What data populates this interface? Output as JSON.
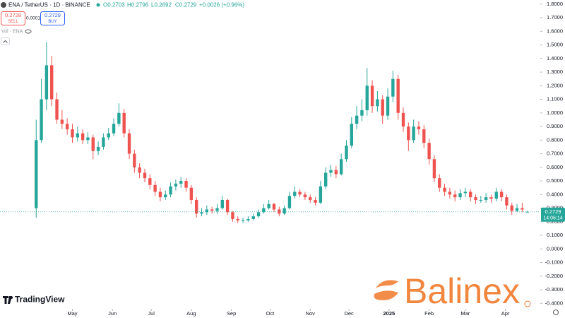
{
  "header": {
    "symbol": "ENA / TetherUS · 1D · BINANCE",
    "open": "O0.2703",
    "high": "H0.2796",
    "low": "L0.2692",
    "close": "C0.2729",
    "change": "+0.0026 (+0.96%)"
  },
  "trade": {
    "sell_price": "0.2728",
    "sell": "SELL",
    "spread": "0.0001",
    "buy_price": "0.2729",
    "buy": "BUY"
  },
  "volume_label": "Vol · ENA",
  "price_tag": {
    "price": "0.2729",
    "countdown": "14:06:14"
  },
  "branding": {
    "platform": "TradingView",
    "watermark": "Balinex"
  },
  "chart_data": {
    "type": "candlestick",
    "up_color": "#26a69a",
    "down_color": "#ef5350",
    "grid": false,
    "x": [
      0,
      4,
      8,
      12,
      16,
      20,
      24,
      28,
      32,
      36,
      40,
      44,
      48,
      52,
      56,
      60,
      64,
      68,
      72,
      76,
      80,
      84,
      88,
      92,
      96,
      100,
      104,
      108,
      112,
      116,
      120,
      124,
      128,
      132,
      136,
      140,
      144,
      148,
      152,
      156,
      160,
      164,
      168,
      172,
      176,
      180,
      184,
      188,
      192,
      196,
      200,
      204,
      208,
      212,
      216,
      220,
      224,
      228,
      232,
      236,
      240,
      244,
      248,
      252,
      256,
      260,
      264,
      268,
      272,
      276,
      280,
      284,
      288,
      292,
      296,
      300,
      304,
      308,
      312,
      316,
      320,
      324,
      328,
      332,
      336,
      340,
      344,
      348,
      352,
      356,
      360,
      364,
      368,
      372,
      376,
      380
    ],
    "ohlc": [
      [
        0.3,
        0.95,
        0.23,
        0.8
      ],
      [
        0.8,
        1.25,
        0.78,
        1.1
      ],
      [
        1.1,
        1.52,
        1.02,
        1.35
      ],
      [
        1.35,
        1.42,
        1.05,
        1.1
      ],
      [
        1.1,
        1.15,
        0.92,
        0.95
      ],
      [
        0.95,
        1.02,
        0.88,
        0.92
      ],
      [
        0.92,
        0.96,
        0.84,
        0.88
      ],
      [
        0.88,
        0.92,
        0.78,
        0.82
      ],
      [
        0.82,
        0.9,
        0.79,
        0.85
      ],
      [
        0.85,
        0.88,
        0.77,
        0.8
      ],
      [
        0.8,
        0.86,
        0.77,
        0.82
      ],
      [
        0.82,
        0.84,
        0.66,
        0.72
      ],
      [
        0.72,
        0.79,
        0.69,
        0.75
      ],
      [
        0.75,
        0.85,
        0.73,
        0.82
      ],
      [
        0.82,
        0.89,
        0.8,
        0.85
      ],
      [
        0.85,
        0.96,
        0.83,
        0.92
      ],
      [
        0.92,
        1.07,
        0.9,
        1.0
      ],
      [
        1.0,
        1.03,
        0.82,
        0.85
      ],
      [
        0.85,
        0.88,
        0.66,
        0.7
      ],
      [
        0.7,
        0.73,
        0.56,
        0.6
      ],
      [
        0.6,
        0.63,
        0.52,
        0.56
      ],
      [
        0.56,
        0.59,
        0.49,
        0.52
      ],
      [
        0.52,
        0.55,
        0.44,
        0.47
      ],
      [
        0.47,
        0.5,
        0.39,
        0.42
      ],
      [
        0.42,
        0.45,
        0.35,
        0.38
      ],
      [
        0.38,
        0.43,
        0.36,
        0.4
      ],
      [
        0.4,
        0.49,
        0.38,
        0.46
      ],
      [
        0.46,
        0.51,
        0.43,
        0.48
      ],
      [
        0.48,
        0.53,
        0.45,
        0.5
      ],
      [
        0.5,
        0.52,
        0.42,
        0.45
      ],
      [
        0.45,
        0.47,
        0.33,
        0.36
      ],
      [
        0.36,
        0.38,
        0.23,
        0.26
      ],
      [
        0.26,
        0.3,
        0.24,
        0.27
      ],
      [
        0.27,
        0.32,
        0.25,
        0.29
      ],
      [
        0.29,
        0.31,
        0.26,
        0.28
      ],
      [
        0.28,
        0.33,
        0.26,
        0.3
      ],
      [
        0.3,
        0.39,
        0.29,
        0.36
      ],
      [
        0.36,
        0.37,
        0.25,
        0.27
      ],
      [
        0.27,
        0.28,
        0.2,
        0.22
      ],
      [
        0.22,
        0.24,
        0.19,
        0.21
      ],
      [
        0.21,
        0.23,
        0.19,
        0.21
      ],
      [
        0.21,
        0.24,
        0.2,
        0.22
      ],
      [
        0.22,
        0.26,
        0.21,
        0.24
      ],
      [
        0.24,
        0.29,
        0.23,
        0.27
      ],
      [
        0.27,
        0.33,
        0.26,
        0.3
      ],
      [
        0.3,
        0.36,
        0.29,
        0.33
      ],
      [
        0.33,
        0.34,
        0.27,
        0.29
      ],
      [
        0.29,
        0.31,
        0.24,
        0.26
      ],
      [
        0.26,
        0.32,
        0.25,
        0.3
      ],
      [
        0.3,
        0.42,
        0.29,
        0.39
      ],
      [
        0.39,
        0.46,
        0.37,
        0.42
      ],
      [
        0.42,
        0.44,
        0.38,
        0.4
      ],
      [
        0.4,
        0.42,
        0.36,
        0.38
      ],
      [
        0.38,
        0.4,
        0.34,
        0.36
      ],
      [
        0.36,
        0.38,
        0.32,
        0.34
      ],
      [
        0.34,
        0.5,
        0.33,
        0.46
      ],
      [
        0.46,
        0.6,
        0.44,
        0.56
      ],
      [
        0.56,
        0.62,
        0.53,
        0.58
      ],
      [
        0.58,
        0.61,
        0.52,
        0.55
      ],
      [
        0.55,
        0.7,
        0.54,
        0.66
      ],
      [
        0.66,
        0.8,
        0.64,
        0.76
      ],
      [
        0.76,
        0.97,
        0.74,
        0.92
      ],
      [
        0.92,
        1.05,
        0.88,
        0.98
      ],
      [
        0.98,
        1.1,
        0.94,
        1.02
      ],
      [
        1.02,
        1.33,
        0.98,
        1.2
      ],
      [
        1.2,
        1.24,
        1.0,
        1.05
      ],
      [
        1.05,
        1.16,
        1.01,
        1.1
      ],
      [
        1.1,
        1.13,
        0.92,
        0.98
      ],
      [
        0.98,
        1.18,
        0.95,
        1.12
      ],
      [
        1.12,
        1.31,
        1.08,
        1.25
      ],
      [
        1.25,
        1.28,
        0.95,
        1.0
      ],
      [
        1.0,
        1.04,
        0.86,
        0.9
      ],
      [
        0.9,
        0.93,
        0.72,
        0.8
      ],
      [
        0.8,
        0.95,
        0.78,
        0.9
      ],
      [
        0.9,
        0.94,
        0.84,
        0.88
      ],
      [
        0.88,
        0.91,
        0.74,
        0.78
      ],
      [
        0.78,
        0.81,
        0.62,
        0.66
      ],
      [
        0.66,
        0.69,
        0.49,
        0.52
      ],
      [
        0.52,
        0.55,
        0.42,
        0.45
      ],
      [
        0.45,
        0.48,
        0.39,
        0.42
      ],
      [
        0.42,
        0.45,
        0.37,
        0.4
      ],
      [
        0.4,
        0.43,
        0.35,
        0.38
      ],
      [
        0.38,
        0.44,
        0.36,
        0.41
      ],
      [
        0.41,
        0.45,
        0.38,
        0.42
      ],
      [
        0.42,
        0.44,
        0.35,
        0.38
      ],
      [
        0.38,
        0.4,
        0.33,
        0.36
      ],
      [
        0.36,
        0.39,
        0.34,
        0.36
      ],
      [
        0.36,
        0.41,
        0.34,
        0.38
      ],
      [
        0.38,
        0.4,
        0.34,
        0.37
      ],
      [
        0.37,
        0.45,
        0.35,
        0.42
      ],
      [
        0.42,
        0.44,
        0.35,
        0.38
      ],
      [
        0.38,
        0.4,
        0.29,
        0.32
      ],
      [
        0.32,
        0.34,
        0.25,
        0.28
      ],
      [
        0.28,
        0.33,
        0.27,
        0.3
      ],
      [
        0.3,
        0.34,
        0.27,
        0.29
      ],
      [
        0.2703,
        0.2796,
        0.2692,
        0.2729
      ]
    ],
    "xlim": [
      -28,
      390
    ],
    "xticks": [
      {
        "value": 28,
        "label": "May"
      },
      {
        "value": 59,
        "label": "Jun"
      },
      {
        "value": 89,
        "label": "Jul"
      },
      {
        "value": 120,
        "label": "Aug"
      },
      {
        "value": 151,
        "label": "Sep"
      },
      {
        "value": 181,
        "label": "Oct"
      },
      {
        "value": 212,
        "label": "Nov"
      },
      {
        "value": 242,
        "label": "Dec"
      },
      {
        "value": 273,
        "label": "2025"
      },
      {
        "value": 304,
        "label": "Feb"
      },
      {
        "value": 332,
        "label": "Mar"
      },
      {
        "value": 363,
        "label": "Apr"
      }
    ],
    "ylim": [
      -0.44,
      1.83
    ],
    "yticks": [
      {
        "value": 1.8,
        "label": "1.8000"
      },
      {
        "value": 1.7,
        "label": "1.7000"
      },
      {
        "value": 1.6,
        "label": "1.6000"
      },
      {
        "value": 1.5,
        "label": "1.5000"
      },
      {
        "value": 1.4,
        "label": "1.4000"
      },
      {
        "value": 1.3,
        "label": "1.3000"
      },
      {
        "value": 1.2,
        "label": "1.2000"
      },
      {
        "value": 1.1,
        "label": "1.1000"
      },
      {
        "value": 1.0,
        "label": "1.0000"
      },
      {
        "value": 0.9,
        "label": "0.9000"
      },
      {
        "value": 0.8,
        "label": "0.8000"
      },
      {
        "value": 0.7,
        "label": "0.7000"
      },
      {
        "value": 0.6,
        "label": "0.6000"
      },
      {
        "value": 0.5,
        "label": "0.5000"
      },
      {
        "value": 0.4,
        "label": "0.4000"
      },
      {
        "value": 0.3,
        "label": "0.3000"
      },
      {
        "value": 0.2,
        "label": "0.2000"
      },
      {
        "value": 0.1,
        "label": "0.1000"
      },
      {
        "value": 0,
        "label": "0.0000"
      },
      {
        "value": -0.1,
        "label": "-0.1000"
      },
      {
        "value": -0.2,
        "label": "-0.2000"
      },
      {
        "value": -0.3,
        "label": "-0.3000"
      },
      {
        "value": -0.4,
        "label": "-0.4000"
      }
    ]
  }
}
